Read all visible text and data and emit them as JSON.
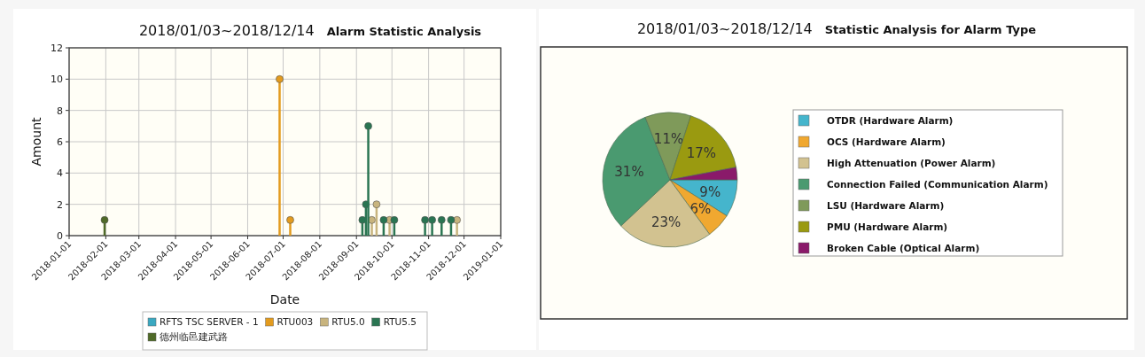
{
  "chart_data": [
    {
      "type": "lollipop",
      "title": "2018/01/03~2018/12/14",
      "subtitle": "Alarm Statistic Analysis",
      "xlabel": "Date",
      "ylabel": "Amount",
      "xlim": [
        "2018-01-01",
        "2019-01-01"
      ],
      "xticks": [
        "2018-01-01",
        "2018-02-01",
        "2018-03-01",
        "2018-04-01",
        "2018-05-01",
        "2018-06-01",
        "2018-07-01",
        "2018-08-01",
        "2018-09-01",
        "2018-10-01",
        "2018-11-01",
        "2018-12-01",
        "2019-01-01"
      ],
      "ylim": [
        0,
        12
      ],
      "yticks": [
        0,
        2,
        4,
        6,
        8,
        10,
        12
      ],
      "grid": true,
      "legend": "bottom",
      "marker": "circle",
      "series": [
        {
          "name": "RFTS TSC SERVER - 1",
          "color": "#3aa8c1"
        },
        {
          "name": "RTU003",
          "color": "#e39b1e",
          "x": [
            "2018-06-28",
            "2018-07-07"
          ],
          "values": [
            10,
            1
          ]
        },
        {
          "name": "RTU5.0",
          "color": "#c8b47e",
          "x": [
            "2018-09-14",
            "2018-09-18",
            "2018-09-29",
            "2018-11-25"
          ],
          "values": [
            1,
            2,
            1,
            1
          ]
        },
        {
          "name": "RTU5.5",
          "color": "#2a7552",
          "x": [
            "2018-09-06",
            "2018-09-09",
            "2018-09-11",
            "2018-09-24",
            "2018-10-03",
            "2018-10-29",
            "2018-11-04",
            "2018-11-12",
            "2018-11-20"
          ],
          "values": [
            1,
            2,
            7,
            1,
            1,
            1,
            1,
            1,
            1
          ]
        },
        {
          "name": "德州临邑建武路",
          "color": "#4f6a28",
          "x": [
            "2018-01-31"
          ],
          "values": [
            1
          ]
        }
      ]
    },
    {
      "type": "pie",
      "title": "2018/01/03~2018/12/14",
      "subtitle": "Statistic Analysis for Alarm Type",
      "legend": "right",
      "categories": [
        "OTDR  (Hardware Alarm)",
        "OCS (Hardware Alarm)",
        "High Attenuation (Power Alarm)",
        "Connection Failed  (Communication Alarm)",
        "LSU (Hardware Alarm)",
        "PMU  (Hardware Alarm)",
        "Broken Cable (Optical Alarm)"
      ],
      "values": [
        9,
        6,
        23,
        31,
        11,
        17,
        3
      ],
      "colors": [
        "#45b5cc",
        "#f0a830",
        "#d2c290",
        "#4a9a70",
        "#7f9a5a",
        "#9a9a10",
        "#8a1a6a"
      ],
      "value_labels": [
        "9%",
        "6%",
        "23%",
        "31%",
        "11%",
        "17%",
        null
      ]
    }
  ]
}
